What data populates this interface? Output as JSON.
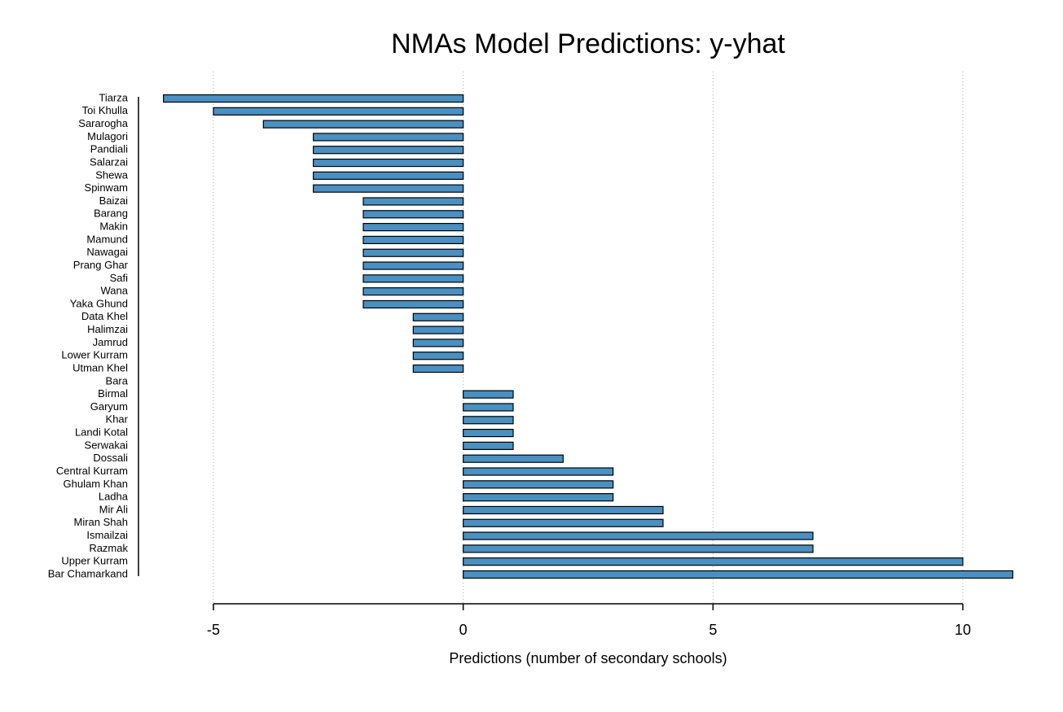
{
  "chart_data": {
    "type": "bar",
    "orientation": "horizontal",
    "title": "NMAs Model Predictions: y-yhat",
    "x_label": "Predictions (number of secondary schools)",
    "categories": [
      "Tiarza",
      "Toi Khulla",
      "Sararogha",
      "Mulagori",
      "Pandiali",
      "Salarzai",
      "Shewa",
      "Spinwam",
      "Baizai",
      "Barang",
      "Makin",
      "Mamund",
      "Nawagai",
      "Prang Ghar",
      "Safi",
      "Wana",
      "Yaka Ghund",
      "Data Khel",
      "Halimzai",
      "Jamrud",
      "Lower Kurram",
      "Utman Khel",
      "Bara",
      "Birmal",
      "Garyum",
      "Khar",
      "Landi Kotal",
      "Serwakai",
      "Dossali",
      "Central Kurram",
      "Ghulam Khan",
      "Ladha",
      "Mir Ali",
      "Miran Shah",
      "Ismailzai",
      "Razmak",
      "Upper Kurram",
      "Bar Chamarkand"
    ],
    "values": [
      -6,
      -5,
      -4,
      -3,
      -3,
      -3,
      -3,
      -3,
      -2,
      -2,
      -2,
      -2,
      -2,
      -2,
      -2,
      -2,
      -2,
      -1,
      -1,
      -1,
      -1,
      -1,
      0,
      1,
      1,
      1,
      1,
      1,
      2,
      3,
      3,
      3,
      4,
      4,
      7,
      7,
      10,
      11
    ],
    "color": "#4a90c2",
    "xlim": [
      -6.5,
      11.5
    ],
    "xticks": [
      -5,
      0,
      5,
      10
    ],
    "grid": true
  }
}
